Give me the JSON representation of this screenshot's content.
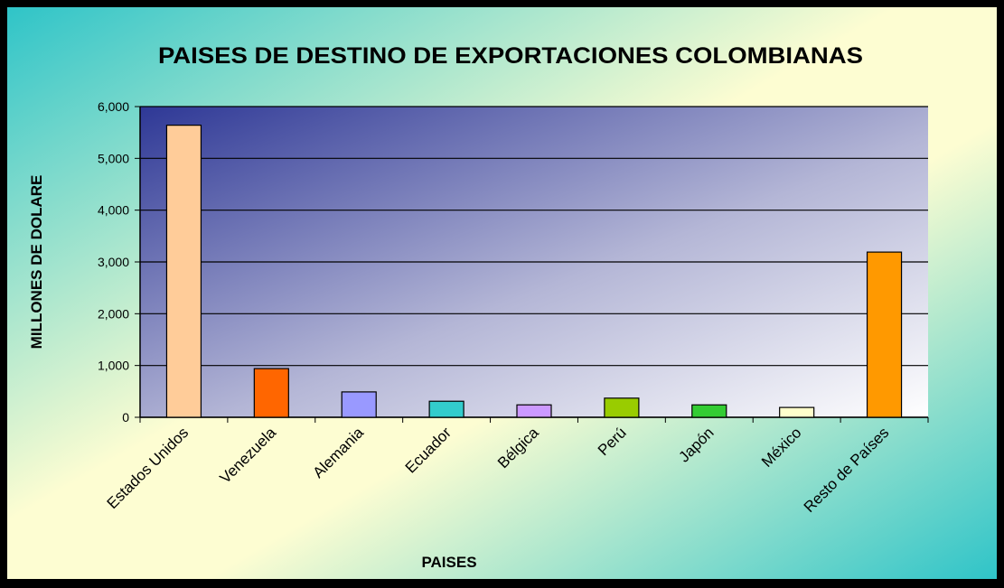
{
  "chart_data": {
    "type": "bar",
    "title": "PAISES DE DESTINO DE EXPORTACIONES COLOMBIANAS",
    "x_label": "PAISES",
    "y_label": "MILLONES DE DOLARE",
    "categories": [
      "Estados Unidos",
      "Venezuela",
      "Alemania",
      "Ecuador",
      "Bélgica",
      "Perú",
      "Japón",
      "México",
      "Resto de Países"
    ],
    "values": [
      5640,
      940,
      490,
      310,
      240,
      370,
      240,
      190,
      3190
    ],
    "colors": [
      "#ffcc99",
      "#ff6600",
      "#9999ff",
      "#33cccc",
      "#cc99ff",
      "#99cc00",
      "#33cc33",
      "#ffffcc",
      "#ff9900"
    ],
    "ylim": [
      0,
      6000
    ],
    "yticks": [
      0,
      {
        "value": 1000,
        "label": "1,000"
      },
      {
        "value": 2000,
        "label": "2,000"
      },
      {
        "value": 3000,
        "label": "3,000"
      },
      {
        "value": 4000,
        "label": "4,000"
      },
      {
        "value": 5000,
        "label": "5,000"
      },
      {
        "value": 6000,
        "label": "6,000"
      }
    ],
    "grid": true
  }
}
